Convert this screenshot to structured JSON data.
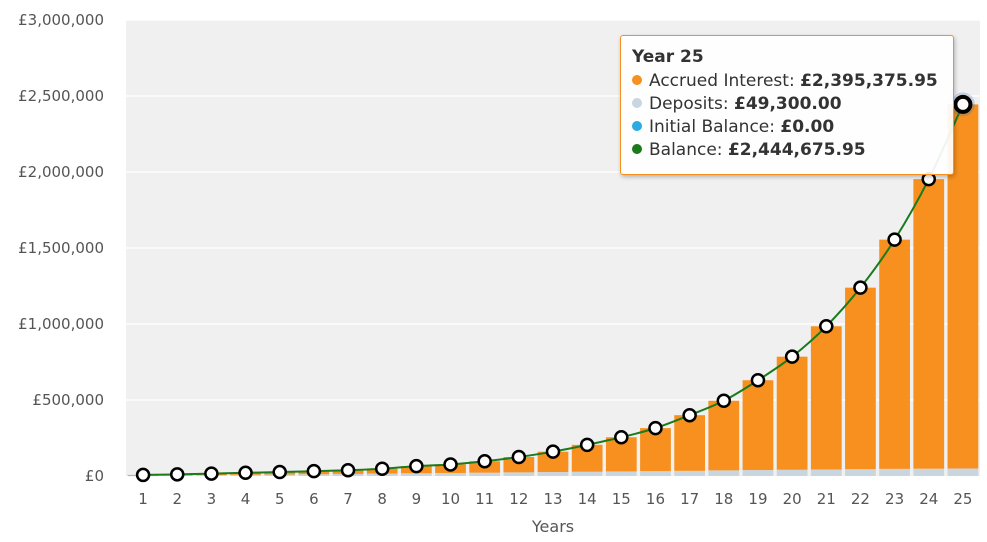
{
  "colors": {
    "interest": "#f7901e",
    "deposits": "#c9d6df",
    "initial": "#2caae2",
    "balance": "#1b7a1b",
    "plot_bg": "#f0f0f0",
    "grid": "#ffffff",
    "axis_text": "#555555"
  },
  "tooltip": {
    "title": "Year 25",
    "rows": [
      {
        "label": "Accrued Interest:",
        "value": "£2,395,375.95",
        "color": "#f7901e"
      },
      {
        "label": "Deposits:",
        "value": "£49,300.00",
        "color": "#c9d6df"
      },
      {
        "label": "Initial Balance:",
        "value": "£0.00",
        "color": "#2caae2"
      },
      {
        "label": "Balance:",
        "value": "£2,444,675.95",
        "color": "#1b7a1b"
      }
    ]
  },
  "chart_data": {
    "type": "bar",
    "stacked": true,
    "title": "",
    "xlabel": "Years",
    "ylabel": "",
    "ylim": [
      0,
      3000000
    ],
    "y_ticks": [
      0,
      500000,
      1000000,
      1500000,
      2000000,
      2500000,
      3000000
    ],
    "y_tick_labels": [
      "£0",
      "£500,000",
      "£1,000,000",
      "£1,500,000",
      "£2,000,000",
      "£2,500,000",
      "£3,000,000"
    ],
    "grid": true,
    "categories": [
      "1",
      "2",
      "3",
      "4",
      "5",
      "6",
      "7",
      "8",
      "9",
      "10",
      "11",
      "12",
      "13",
      "14",
      "15",
      "16",
      "17",
      "18",
      "19",
      "20",
      "21",
      "22",
      "23",
      "24",
      "25"
    ],
    "series": [
      {
        "name": "Initial Balance",
        "type": "bar",
        "values": [
          0,
          0,
          0,
          0,
          0,
          0,
          0,
          0,
          0,
          0,
          0,
          0,
          0,
          0,
          0,
          0,
          0,
          0,
          0,
          0,
          0,
          0,
          0,
          0,
          0
        ]
      },
      {
        "name": "Deposits",
        "type": "bar",
        "values": [
          2000,
          4000,
          6000,
          8000,
          10000,
          12000,
          14000,
          16000,
          18000,
          20000,
          22000,
          24000,
          26000,
          28000,
          30000,
          32000,
          34000,
          37000,
          39000,
          41000,
          43000,
          45000,
          47000,
          48000,
          49300
        ]
      },
      {
        "name": "Accrued Interest",
        "type": "bar",
        "values": [
          5000,
          7000,
          10000,
          13000,
          16000,
          20000,
          24000,
          32000,
          47000,
          56000,
          75000,
          101000,
          134000,
          177000,
          225000,
          283000,
          366000,
          458000,
          591000,
          744000,
          942000,
          1194000,
          1508000,
          1905000,
          2395375.95
        ]
      },
      {
        "name": "Balance",
        "type": "line",
        "values": [
          7000,
          11000,
          16000,
          21000,
          26000,
          32000,
          38000,
          48000,
          65000,
          76000,
          97000,
          125000,
          160000,
          205000,
          255000,
          315000,
          400000,
          495000,
          630000,
          785000,
          985000,
          1239000,
          1555000,
          1953000,
          2444675.95
        ]
      }
    ],
    "highlighted_index": 24
  }
}
